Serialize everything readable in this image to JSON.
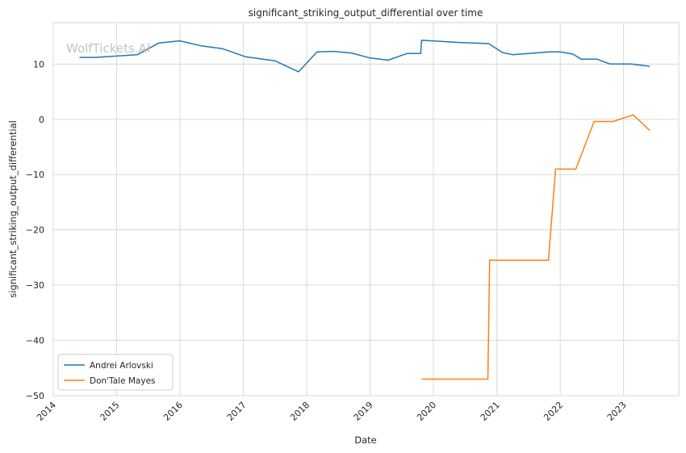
{
  "chart_data": {
    "type": "line",
    "title": "significant_striking_output_differential over time",
    "xlabel": "Date",
    "ylabel": "significant_striking_output_differential",
    "watermark": "WolfTickets.AI",
    "xlim": [
      "2014-01-01",
      "2023-11-15"
    ],
    "ylim": [
      -50,
      17.5
    ],
    "x_ticks": [
      "2014",
      "2015",
      "2016",
      "2017",
      "2018",
      "2019",
      "2020",
      "2021",
      "2022",
      "2023"
    ],
    "y_ticks": [
      10,
      0,
      -10,
      -20,
      -30,
      -40,
      -50
    ],
    "y_tick_labels": [
      "10",
      "0",
      "−10",
      "−20",
      "−30",
      "−40",
      "−50"
    ],
    "grid": true,
    "legend_position": "lower-left",
    "series": [
      {
        "name": "Andrei Arlovski",
        "color": "#1f77b4",
        "points": [
          [
            "2014-06-01",
            11.2
          ],
          [
            "2014-09-01",
            11.2
          ],
          [
            "2015-05-01",
            11.7
          ],
          [
            "2015-09-01",
            13.8
          ],
          [
            "2016-01-01",
            14.2
          ],
          [
            "2016-05-01",
            13.3
          ],
          [
            "2016-09-01",
            12.8
          ],
          [
            "2017-01-15",
            11.3
          ],
          [
            "2017-07-01",
            10.6
          ],
          [
            "2017-11-15",
            8.6
          ],
          [
            "2018-03-01",
            12.2
          ],
          [
            "2018-06-01",
            12.3
          ],
          [
            "2018-09-15",
            12.0
          ],
          [
            "2019-01-01",
            11.1
          ],
          [
            "2019-04-15",
            10.7
          ],
          [
            "2019-08-01",
            11.9
          ],
          [
            "2019-10-20",
            11.9
          ],
          [
            "2019-10-25",
            14.3
          ],
          [
            "2020-06-01",
            13.9
          ],
          [
            "2020-11-15",
            13.7
          ],
          [
            "2021-02-01",
            12.1
          ],
          [
            "2021-04-01",
            11.7
          ],
          [
            "2021-11-01",
            12.2
          ],
          [
            "2022-01-01",
            12.2
          ],
          [
            "2022-03-15",
            11.8
          ],
          [
            "2022-05-01",
            10.9
          ],
          [
            "2022-08-01",
            10.9
          ],
          [
            "2022-10-15",
            10.0
          ],
          [
            "2023-02-15",
            10.0
          ],
          [
            "2023-06-01",
            9.6
          ]
        ]
      },
      {
        "name": "Don'Tale Mayes",
        "color": "#ff7f0e",
        "points": [
          [
            "2019-10-25",
            -47.0
          ],
          [
            "2020-11-10",
            -47.0
          ],
          [
            "2020-11-20",
            -25.5
          ],
          [
            "2021-10-25",
            -25.5
          ],
          [
            "2021-12-05",
            -9.0
          ],
          [
            "2022-04-01",
            -9.0
          ],
          [
            "2022-07-15",
            -0.4
          ],
          [
            "2022-11-01",
            -0.4
          ],
          [
            "2023-02-25",
            0.8
          ],
          [
            "2023-06-01",
            -2.0
          ]
        ]
      }
    ]
  }
}
